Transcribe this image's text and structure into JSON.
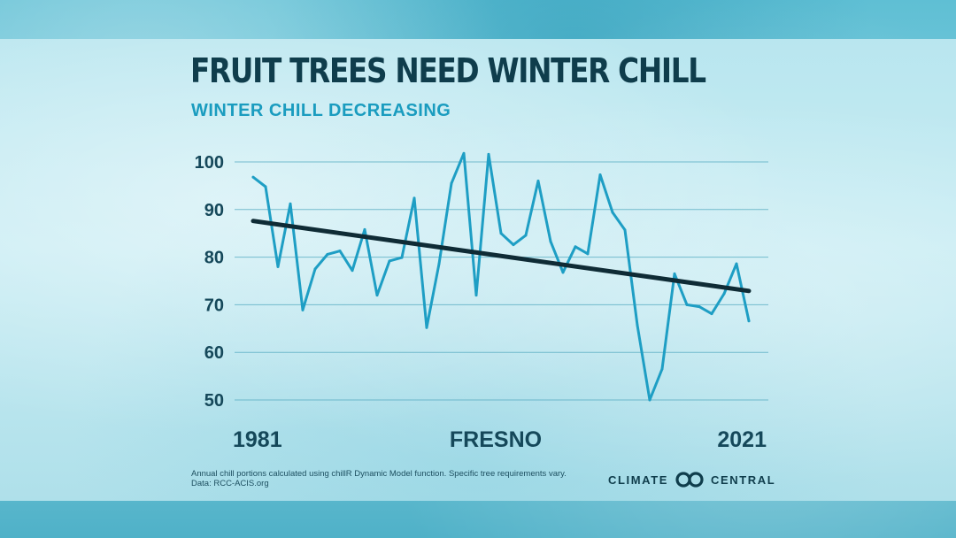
{
  "header": {
    "title": "FRUIT TREES NEED WINTER CHILL",
    "subtitle": "WINTER CHILL DECREASING"
  },
  "footer": {
    "note_line1": "Annual chill portions calculated using chillR Dynamic Model function. Specific tree requirements vary.",
    "note_line2": "Data: RCC-ACIS.org",
    "logo_left": "CLIMATE",
    "logo_right": "CENTRAL",
    "logo_icon": "climate-central-rings-icon"
  },
  "colors": {
    "series": "#1e9ec4",
    "trend": "#0f2b35",
    "grid": "#5aaec3",
    "title": "#0f3d4c",
    "subtitle": "#1a9cbf"
  },
  "chart_data": {
    "type": "line",
    "title": "FRUIT TREES NEED WINTER CHILL",
    "subtitle": "WINTER CHILL DECREASING",
    "xlabel": "FRESNO",
    "ylabel": "",
    "x_tick_labels": [
      "1981",
      "2021"
    ],
    "y_ticks": [
      100,
      90,
      80,
      70,
      60,
      50
    ],
    "xlim": [
      1981,
      2021
    ],
    "ylim": [
      50,
      100
    ],
    "grid": true,
    "x": [
      1981,
      1982,
      1983,
      1984,
      1985,
      1986,
      1987,
      1988,
      1989,
      1990,
      1991,
      1992,
      1993,
      1994,
      1995,
      1996,
      1997,
      1998,
      1999,
      2000,
      2001,
      2002,
      2003,
      2004,
      2005,
      2006,
      2007,
      2008,
      2009,
      2010,
      2011,
      2012,
      2013,
      2014,
      2015,
      2016,
      2017,
      2018,
      2019,
      2020,
      2021
    ],
    "series": [
      {
        "values": [
          96.8,
          94.8,
          78.0,
          91.2,
          68.9,
          77.5,
          80.6,
          81.3,
          77.2,
          85.8,
          72.0,
          79.2,
          79.9,
          92.4,
          65.2,
          78.6,
          95.5,
          101.8,
          72.0,
          101.6,
          85.0,
          82.6,
          84.6,
          96.0,
          83.3,
          76.8,
          82.2,
          80.7,
          97.3,
          89.4,
          85.7,
          65.7,
          50.0,
          56.5,
          76.5,
          70.0,
          69.6,
          68.1,
          72.3,
          78.6,
          66.6
        ]
      }
    ],
    "trendline": {
      "x": [
        1981,
        2021
      ],
      "y": [
        87.6,
        72.9
      ]
    }
  }
}
